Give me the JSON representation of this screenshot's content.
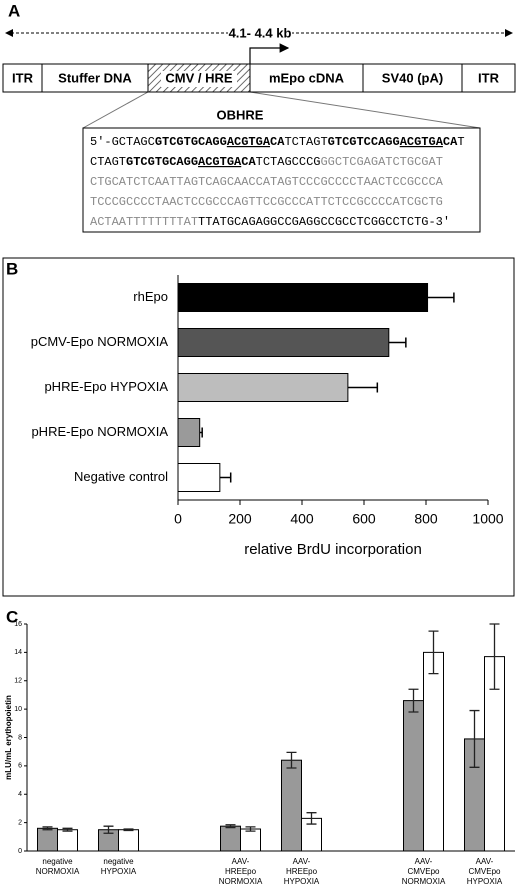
{
  "diagram": {
    "label": "A",
    "length_label": "4.1- 4.4 kb",
    "segments": [
      "ITR",
      "Stuffer DNA",
      "CMV / HRE",
      "mEpo cDNA",
      "SV40 (pA)",
      "ITR"
    ],
    "inset_title": "OBHRE",
    "sequence": [
      [
        {
          "text": "5'-GCTAGC",
          "style": "plain"
        },
        {
          "text": "GTCGTGCAGG",
          "style": "bold"
        },
        {
          "text": "ACGTGA",
          "style": "bold-underline"
        },
        {
          "text": "CA",
          "style": "bold"
        },
        {
          "text": "TCTAGT",
          "style": "plain"
        },
        {
          "text": "GTCGTCCAGG",
          "style": "bold"
        },
        {
          "text": "ACGTGA",
          "style": "bold-underline"
        },
        {
          "text": "CA",
          "style": "bold"
        },
        {
          "text": "T",
          "style": "plain"
        }
      ],
      [
        {
          "text": "CTAGT",
          "style": "plain"
        },
        {
          "text": "GTCGTGCAGG",
          "style": "bold"
        },
        {
          "text": "ACGTGA",
          "style": "bold-underline"
        },
        {
          "text": "CA",
          "style": "bold"
        },
        {
          "text": "TCTAGCCCG",
          "style": "plain"
        },
        {
          "text": "GGCTCGAGATCTGCGAT",
          "style": "grey"
        }
      ],
      [
        {
          "text": "CTGCATCTCAATTAGTCAGCAACCATAGTCCCGCCCCTAACTCCGCCCA",
          "style": "grey"
        }
      ],
      [
        {
          "text": "TCCCGCCCCTAACTCCGCCCAGTTCCGCCCATTCTCCGCCCCATCGCTG",
          "style": "grey"
        }
      ],
      [
        {
          "text": "ACTAATTTTTTTTAT",
          "style": "grey"
        },
        {
          "text": "TTATGCAGAGGCCGAGGCCGCCTCGGCCTCTG-3'",
          "style": "plain"
        }
      ]
    ]
  },
  "chart_data": [
    {
      "type": "bar",
      "orientation": "horizontal",
      "panel_label": "B",
      "categories": [
        "rhEpo",
        "pCMV-Epo NORMOXIA",
        "pHRE-Epo HYPOXIA",
        "pHRE-Epo NORMOXIA",
        "Negative control"
      ],
      "values": [
        805,
        680,
        548,
        70,
        135
      ],
      "errors": [
        85,
        55,
        95,
        8,
        35
      ],
      "colors": [
        "#000000",
        "#555555",
        "#bdbdbd",
        "#9a9a9a",
        "#ffffff"
      ],
      "x_label": "relative BrdU incorporation",
      "xlim": [
        0,
        1000
      ],
      "xticks": [
        0,
        200,
        400,
        600,
        800,
        1000
      ]
    },
    {
      "type": "bar",
      "orientation": "vertical",
      "panel_label": "C",
      "categories": [
        [
          "negative",
          "NORMOXIA"
        ],
        [
          "negative",
          "HYPOXIA"
        ],
        null,
        [
          "AAV-",
          "HREEpo",
          "NORMOXIA"
        ],
        [
          "AAV-",
          "HREEpo",
          "HYPOXIA"
        ],
        null,
        [
          "AAV-",
          "CMVEpo",
          "NORMOXIA"
        ],
        [
          "AAV-",
          "CMVEpo",
          "HYPOXIA"
        ]
      ],
      "series": [
        {
          "color": "#999999",
          "values": [
            1.6,
            1.5,
            null,
            1.75,
            6.4,
            null,
            10.6,
            7.9
          ],
          "errors": [
            0.1,
            0.25,
            null,
            0.1,
            0.55,
            null,
            0.8,
            2
          ]
        },
        {
          "color": "#ffffff",
          "values": [
            1.5,
            1.5,
            null,
            1.55,
            2.3,
            null,
            14,
            13.7
          ],
          "errors": [
            0.1,
            0.05,
            null,
            0.15,
            0.4,
            null,
            1.5,
            2.3
          ]
        }
      ],
      "y_label": "mLU/mL erythopoietin",
      "ylim": [
        0,
        16
      ],
      "yticks": [
        0,
        2,
        4,
        6,
        8,
        10,
        12,
        14,
        16
      ]
    }
  ]
}
